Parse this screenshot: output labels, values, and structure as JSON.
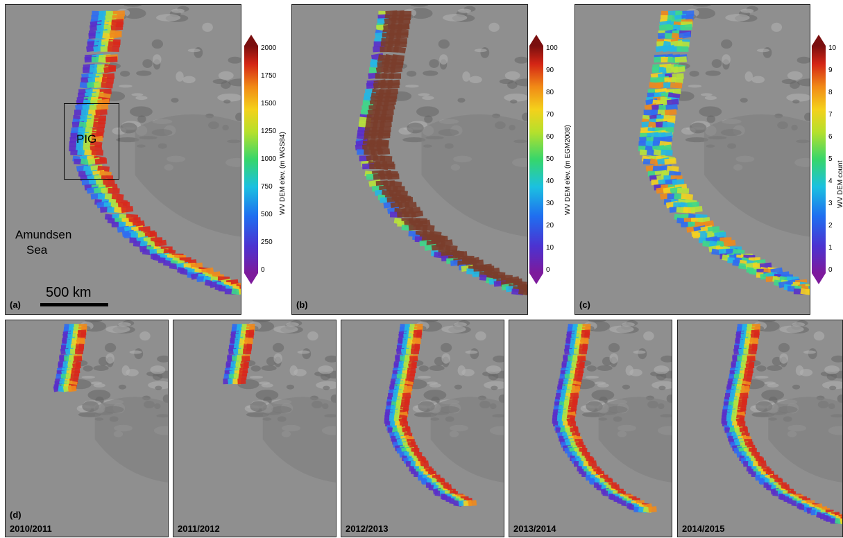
{
  "panels_top": [
    {
      "label": "(a)",
      "colormap": "elevation",
      "colorbar": {
        "title": "WV DEM elev. (m WGS84)",
        "ticks": [
          "2000",
          "1750",
          "1500",
          "1250",
          "1000",
          "750",
          "500",
          "250",
          "0"
        ]
      },
      "annotations": {
        "box_label": "PIG",
        "sea_label_line1": "Amundsen",
        "sea_label_line2": "Sea",
        "scale_bar": "500 km"
      }
    },
    {
      "label": "(b)",
      "colormap": "geoid",
      "colorbar": {
        "title": "WV DEM elev. (m EGM2008)",
        "ticks": [
          "100",
          "90",
          "80",
          "70",
          "60",
          "50",
          "40",
          "30",
          "20",
          "10",
          "0"
        ]
      }
    },
    {
      "label": "(c)",
      "colormap": "count",
      "colorbar": {
        "title": "WV DEM count",
        "ticks": [
          "10",
          "9",
          "8",
          "7",
          "6",
          "5",
          "4",
          "3",
          "2",
          "1",
          "0"
        ]
      }
    }
  ],
  "panels_bottom": {
    "label": "(d)",
    "years": [
      "2010/2011",
      "2011/2012",
      "2012/2013",
      "2013/2014",
      "2014/2015"
    ],
    "coverage_fraction": [
      0.3,
      0.25,
      0.85,
      0.9,
      1.0
    ]
  },
  "colors": {
    "hillshade": "#8f8f8f",
    "dem_brown": "#7a3d2b",
    "purple": "#8a2ea8"
  }
}
